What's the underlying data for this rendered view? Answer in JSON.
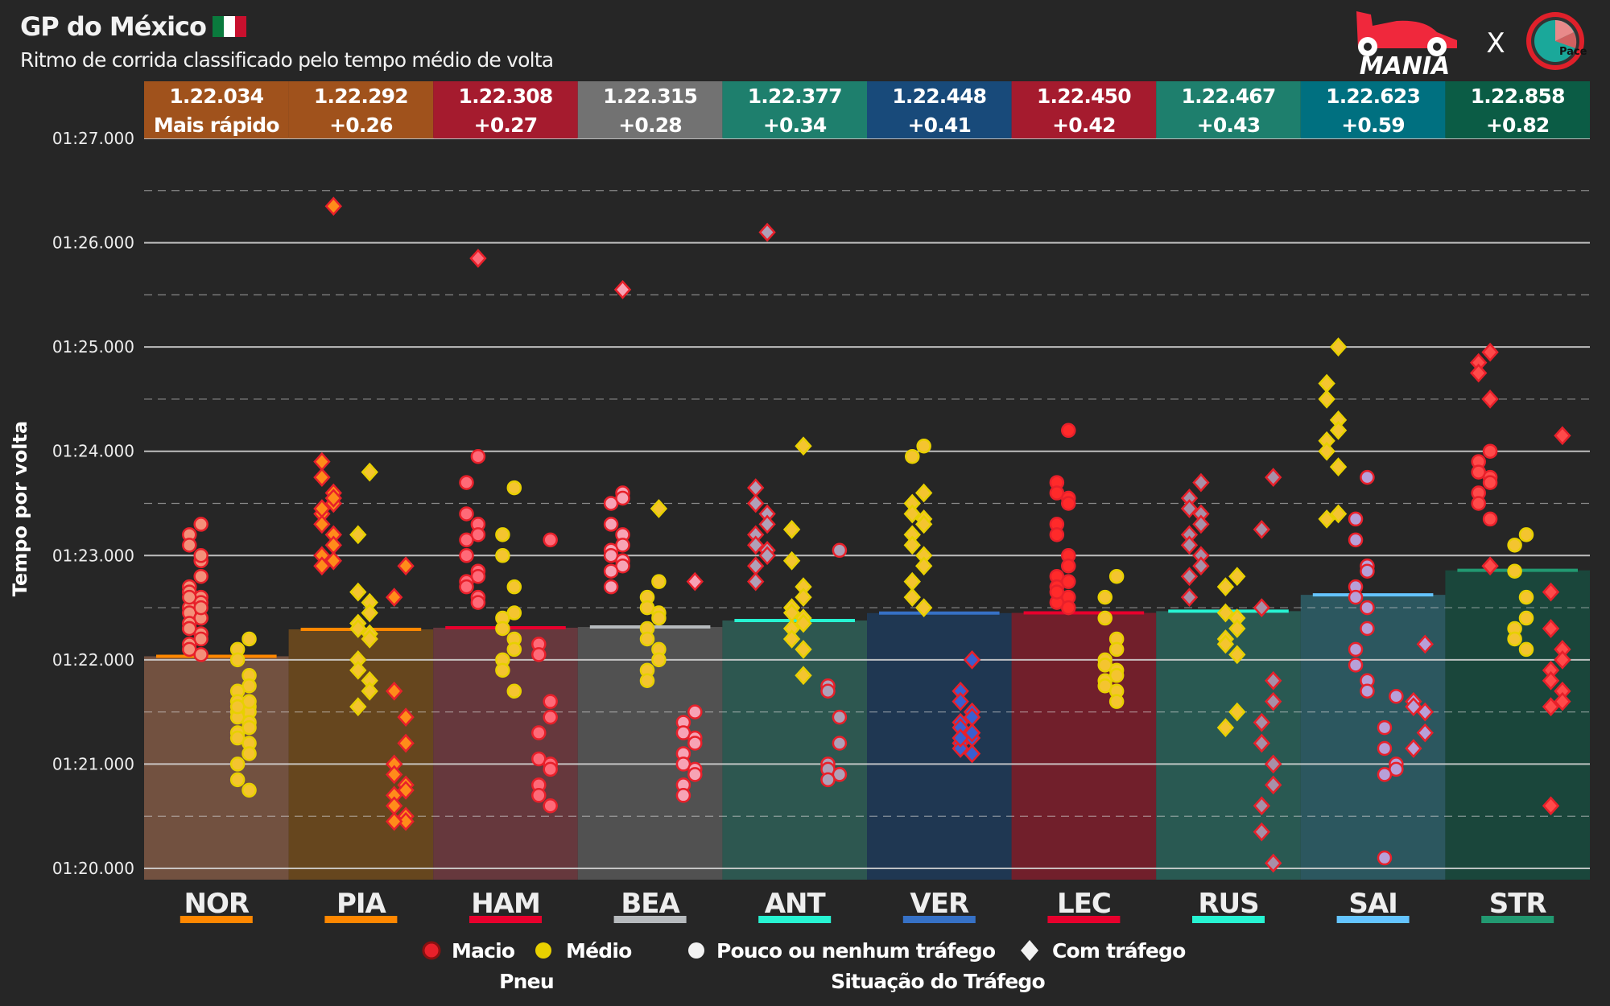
{
  "header": {
    "title": "GP do México",
    "subtitle": "Ritmo de corrida classificado pelo tempo médio de volta",
    "logo_text": "MANIA",
    "logo_separator": "X",
    "logo2_text": "Pace"
  },
  "colors": {
    "soft": "#e8202a",
    "medium": "#e8d000",
    "grid": "#d9d9d9"
  },
  "chart_data": {
    "type": "scatter",
    "title": "GP do México",
    "subtitle": "Ritmo de corrida classificado pelo tempo médio de volta",
    "ylabel": "Tempo por volta",
    "ylim_seconds": [
      80,
      87
    ],
    "yticks": [
      {
        "value": 87,
        "label": "01:27.000"
      },
      {
        "value": 86,
        "label": "01:26.000"
      },
      {
        "value": 85,
        "label": "01:25.000"
      },
      {
        "value": 84,
        "label": "01:24.000"
      },
      {
        "value": 83,
        "label": "01:23.000"
      },
      {
        "value": 82,
        "label": "01:22.000"
      },
      {
        "value": 81,
        "label": "01:21.000"
      },
      {
        "value": 80,
        "label": "01:20.000"
      }
    ],
    "legend": {
      "tyre_title": "Pneu",
      "tyre_items": [
        "Macio",
        "Médio"
      ],
      "traffic_title": "Situação do Tráfego",
      "traffic_items": [
        "Pouco ou nenhum tráfego",
        "Com tráfego"
      ]
    },
    "drivers": [
      {
        "code": "NOR",
        "avg": 82.034,
        "avg_label": "1.22.034",
        "gap_label": "Mais rápido",
        "team_color": "#ff8700",
        "header_color": "#a0521c",
        "bar_color": "#7b5644",
        "marker": "#f4907a",
        "stints": [
          {
            "stint": 1,
            "of": 2,
            "compound": "Macio",
            "traffic": false,
            "laps": [
              83.3,
              83.2,
              83.1,
              82.95,
              82.8,
              82.7,
              82.65,
              82.6,
              82.55,
              82.5,
              82.45,
              82.4,
              82.4,
              82.35,
              82.3,
              82.25,
              82.2,
              82.15,
              82.1,
              82.05,
              82.5,
              82.6,
              82.3,
              83.0
            ]
          },
          {
            "stint": 2,
            "of": 2,
            "compound": "Médio",
            "traffic": false,
            "laps": [
              82.2,
              82.1,
              82.0,
              81.85,
              81.75,
              81.7,
              81.6,
              81.55,
              81.5,
              81.5,
              81.45,
              81.4,
              81.35,
              81.3,
              81.25,
              81.2,
              81.1,
              81.0,
              80.85,
              80.75,
              81.6,
              81.55
            ]
          }
        ]
      },
      {
        "code": "PIA",
        "avg": 82.292,
        "avg_label": "1.22.292",
        "gap_label": "+0.26",
        "team_color": "#ff8700",
        "header_color": "#a0521c",
        "bar_color": "#6e4a1e",
        "marker": "#ff8c1a",
        "stints": [
          {
            "stint": 1,
            "of": 3,
            "compound": "Macio",
            "traffic": true,
            "laps": [
              86.35,
              83.9,
              83.75,
              83.6,
              83.5,
              83.4,
              83.3,
              83.2,
              83.1,
              83.0,
              82.9,
              82.95,
              83.55,
              83.45
            ]
          },
          {
            "stint": 2,
            "of": 3,
            "compound": "Médio",
            "traffic": true,
            "laps": [
              83.8,
              83.2,
              82.65,
              82.55,
              82.45,
              82.35,
              82.3,
              82.25,
              82.2,
              82.0,
              81.9,
              81.8,
              81.7,
              81.55
            ]
          },
          {
            "stint": 3,
            "of": 3,
            "compound": "Macio",
            "traffic": true,
            "laps": [
              82.9,
              82.6,
              81.7,
              81.45,
              81.2,
              81.0,
              80.9,
              80.8,
              80.75,
              80.7,
              80.6,
              80.5,
              80.45,
              80.45
            ]
          }
        ]
      },
      {
        "code": "HAM",
        "avg": 82.308,
        "avg_label": "1.22.308",
        "gap_label": "+0.27",
        "team_color": "#e8002d",
        "header_color": "#a51b2e",
        "bar_color": "#6e3b40",
        "marker": "#ff6a78",
        "stints": [
          {
            "stint": 1,
            "of": 3,
            "compound": "Macio",
            "traffic": false,
            "laps": [
              83.95,
              83.7,
              83.4,
              83.3,
              83.2,
              83.15,
              83.0,
              82.85,
              82.8,
              82.75,
              82.7,
              82.6,
              82.55
            ]
          },
          {
            "stint": 1,
            "of": 3,
            "compound": "Macio",
            "traffic": true,
            "laps": [
              85.85
            ]
          },
          {
            "stint": 2,
            "of": 3,
            "compound": "Médio",
            "traffic": false,
            "laps": [
              83.65,
              83.2,
              83.0,
              82.7,
              82.45,
              82.4,
              82.3,
              82.2,
              82.1,
              82.0,
              81.9,
              81.7
            ]
          },
          {
            "stint": 3,
            "of": 3,
            "compound": "Macio",
            "traffic": false,
            "laps": [
              83.15,
              82.15,
              82.05,
              81.6,
              81.45,
              81.3,
              81.05,
              81.0,
              80.95,
              80.8,
              80.7,
              80.6
            ]
          }
        ]
      },
      {
        "code": "BEA",
        "avg": 82.315,
        "avg_label": "1.22.315",
        "gap_label": "+0.28",
        "team_color": "#b6babd",
        "header_color": "#727272",
        "bar_color": "#575757",
        "marker": "#f7a3b5",
        "stints": [
          {
            "stint": 1,
            "of": 3,
            "compound": "Macio",
            "traffic": false,
            "laps": [
              83.6,
              83.5,
              83.3,
              83.2,
              83.1,
              83.05,
              83.0,
              82.95,
              82.9,
              82.85,
              82.7,
              83.55
            ]
          },
          {
            "stint": 1,
            "of": 3,
            "compound": "Macio",
            "traffic": true,
            "laps": [
              85.55
            ]
          },
          {
            "stint": 2,
            "of": 3,
            "compound": "Médio",
            "traffic": false,
            "laps": [
              82.75,
              82.6,
              82.5,
              82.45,
              82.4,
              82.3,
              82.2,
              82.1,
              82.0,
              81.9,
              81.8
            ]
          },
          {
            "stint": 2,
            "of": 3,
            "compound": "Médio",
            "traffic": true,
            "laps": [
              83.45
            ]
          },
          {
            "stint": 3,
            "of": 3,
            "compound": "Macio",
            "traffic": false,
            "laps": [
              81.5,
              81.4,
              81.3,
              81.25,
              81.2,
              81.1,
              81.0,
              80.95,
              80.9,
              80.8,
              80.7
            ]
          },
          {
            "stint": 3,
            "of": 3,
            "compound": "Macio",
            "traffic": true,
            "laps": [
              82.75
            ]
          }
        ]
      },
      {
        "code": "ANT",
        "avg": 82.377,
        "avg_label": "1.22.377",
        "gap_label": "+0.34",
        "team_color": "#27f4d2",
        "header_color": "#1e7f6d",
        "bar_color": "#2f5d55",
        "marker": "#b0a0b8",
        "stints": [
          {
            "stint": 1,
            "of": 3,
            "compound": "Macio",
            "traffic": true,
            "laps": [
              86.1,
              83.65,
              83.5,
              83.4,
              83.3,
              83.2,
              83.1,
              83.05,
              83.0,
              82.9,
              82.75
            ]
          },
          {
            "stint": 2,
            "of": 3,
            "compound": "Médio",
            "traffic": true,
            "laps": [
              84.05,
              83.25,
              82.95,
              82.7,
              82.6,
              82.5,
              82.45,
              82.4,
              82.35,
              82.3,
              82.2,
              82.1,
              81.85
            ]
          },
          {
            "stint": 3,
            "of": 3,
            "compound": "Macio",
            "traffic": false,
            "laps": [
              83.05,
              81.75,
              81.7,
              81.45,
              81.2,
              81.0,
              80.95,
              80.9,
              80.9,
              80.85,
              80.85
            ]
          }
        ]
      },
      {
        "code": "VER",
        "avg": 82.448,
        "avg_label": "1.22.448",
        "gap_label": "+0.41",
        "team_color": "#3671c6",
        "header_color": "#184a7a",
        "bar_color": "#1f3a58",
        "marker": "#3a5fd0",
        "stints": [
          {
            "stint": 1,
            "of": 2,
            "compound": "Médio",
            "traffic": false,
            "laps": [
              84.05,
              83.95
            ]
          },
          {
            "stint": 1,
            "of": 2,
            "compound": "Médio",
            "traffic": true,
            "laps": [
              83.6,
              83.5,
              83.4,
              83.35,
              83.3,
              83.2,
              83.1,
              83.0,
              82.9,
              82.75,
              82.6,
              82.5
            ]
          },
          {
            "stint": 2,
            "of": 2,
            "compound": "Macio",
            "traffic": true,
            "laps": [
              82.0,
              81.7,
              81.6,
              81.5,
              81.45,
              81.4,
              81.35,
              81.3,
              81.25,
              81.2,
              81.15,
              81.1,
              81.3,
              81.25
            ]
          }
        ]
      },
      {
        "code": "LEC",
        "avg": 82.45,
        "avg_label": "1.22.450",
        "gap_label": "+0.42",
        "team_color": "#e8002d",
        "header_color": "#a51b2e",
        "bar_color": "#7a1f2c",
        "marker": "#ff2a2a",
        "stints": [
          {
            "stint": 1,
            "of": 2,
            "compound": "Macio",
            "traffic": false,
            "laps": [
              84.2,
              83.7,
              83.6,
              83.55,
              83.5,
              83.3,
              83.2,
              83.0,
              82.9,
              82.8,
              82.7,
              82.6,
              82.5,
              82.55,
              82.65,
              82.75
            ]
          },
          {
            "stint": 2,
            "of": 2,
            "compound": "Médio",
            "traffic": false,
            "laps": [
              82.8,
              82.6,
              82.4,
              82.2,
              82.1,
              82.0,
              81.95,
              81.9,
              81.85,
              81.8,
              81.75,
              81.7,
              81.6
            ]
          }
        ]
      },
      {
        "code": "RUS",
        "avg": 82.467,
        "avg_label": "1.22.467",
        "gap_label": "+0.43",
        "team_color": "#27f4d2",
        "header_color": "#1e7f6d",
        "bar_color": "#2a5f58",
        "marker": "#a890a8",
        "stints": [
          {
            "stint": 1,
            "of": 3,
            "compound": "Macio",
            "traffic": true,
            "laps": [
              83.7,
              83.55,
              83.45,
              83.4,
              83.3,
              83.2,
              83.1,
              83.0,
              82.9,
              82.8,
              82.6
            ]
          },
          {
            "stint": 2,
            "of": 3,
            "compound": "Médio",
            "traffic": true,
            "laps": [
              82.8,
              82.7,
              82.45,
              82.4,
              82.3,
              82.2,
              82.15,
              82.05,
              81.5,
              81.35
            ]
          },
          {
            "stint": 3,
            "of": 3,
            "compound": "Macio",
            "traffic": true,
            "laps": [
              83.75,
              83.25,
              82.5,
              81.8,
              81.6,
              81.4,
              81.2,
              81.0,
              80.8,
              80.6,
              80.35,
              80.05
            ]
          }
        ]
      },
      {
        "code": "SAI",
        "avg": 82.623,
        "avg_label": "1.22.623",
        "gap_label": "+0.59",
        "team_color": "#64c4ff",
        "header_color": "#007080",
        "bar_color": "#2d5d66",
        "marker": "#b8a0d8",
        "stints": [
          {
            "stint": 1,
            "of": 4,
            "compound": "Médio",
            "traffic": true,
            "laps": [
              85.0,
              84.65,
              84.5,
              84.3,
              84.2,
              84.1,
              84.0,
              83.85,
              83.4,
              83.35
            ]
          },
          {
            "stint": 2,
            "of": 4,
            "compound": "Macio",
            "traffic": false,
            "laps": [
              83.75,
              83.35,
              83.15,
              82.9,
              82.85,
              82.7,
              82.6,
              82.5,
              82.3,
              82.1,
              81.95,
              81.8,
              81.7
            ]
          },
          {
            "stint": 3,
            "of": 4,
            "compound": "Macio",
            "traffic": false,
            "laps": [
              81.65,
              81.35,
              81.15,
              81.0,
              80.95,
              80.9,
              80.1
            ]
          },
          {
            "stint": 4,
            "of": 4,
            "compound": "Macio",
            "traffic": true,
            "laps": [
              82.15,
              81.6,
              81.55,
              81.5,
              81.3,
              81.15
            ]
          }
        ]
      },
      {
        "code": "STR",
        "avg": 82.858,
        "avg_label": "1.22.858",
        "gap_label": "+0.82",
        "team_color": "#229971",
        "header_color": "#0b5c45",
        "bar_color": "#1a4a3e",
        "marker": "#ff4a4a",
        "stints": [
          {
            "stint": 1,
            "of": 3,
            "compound": "Macio",
            "traffic": false,
            "laps": [
              84.0,
              83.9,
              83.8,
              83.75,
              83.7,
              83.6,
              83.5,
              83.35
            ]
          },
          {
            "stint": 1,
            "of": 3,
            "compound": "Macio",
            "traffic": true,
            "laps": [
              84.95,
              84.85,
              84.75,
              84.5,
              82.9
            ]
          },
          {
            "stint": 2,
            "of": 3,
            "compound": "Médio",
            "traffic": false,
            "laps": [
              83.2,
              83.1,
              82.85,
              82.6,
              82.4,
              82.3,
              82.2,
              82.1
            ]
          },
          {
            "stint": 3,
            "of": 3,
            "compound": "Macio",
            "traffic": true,
            "laps": [
              84.15,
              82.65,
              82.3,
              82.1,
              82.0,
              81.9,
              81.8,
              81.7,
              81.6,
              81.55,
              80.6
            ]
          }
        ]
      }
    ]
  }
}
